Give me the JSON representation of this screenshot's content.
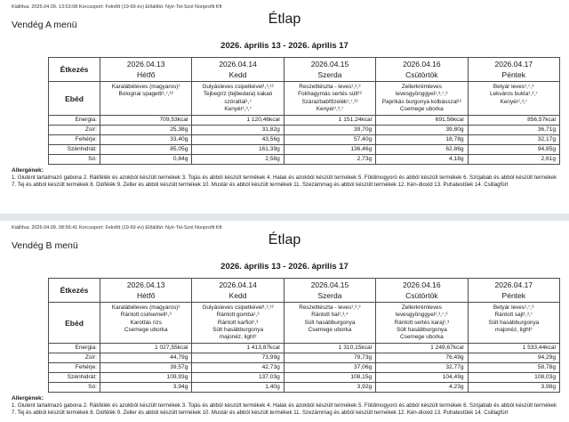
{
  "documents": [
    {
      "issued_line": "Kiállítva: 2026.04.09. 13:53:08 Korcsoport: Felnőtt (19-69 év) Előállító: Nyír-Tel-Szol Nonprofit Kft",
      "menu_name": "Vendég A menü",
      "title": "Étlap",
      "date_range": "2026. április 13 - 2026. április 17",
      "table": {
        "meal_column_header": "Étkezés",
        "meal_row_label": "Ebéd",
        "days": [
          {
            "date": "2026.04.13",
            "day": "Hétfő",
            "lines": [
              "Karalábéleves (magyaros)¹",
              "Bolognai spagetti¹,⁷,¹²"
            ]
          },
          {
            "date": "2026.04.14",
            "day": "Kedd",
            "lines": [
              "Gulyásleves csipetkével¹,³,¹²",
              "Tejbegríz (tejbedara) kakaó",
              "szórattal¹,⁷",
              "Kenyér¹,³,⁷"
            ]
          },
          {
            "date": "2026.04.15",
            "day": "Szerda",
            "lines": [
              "Reszelttészta - leves¹,³,⁹",
              "Fokhagymás sertés sült¹²",
              "Szárazbabfőzelék¹,⁷,¹²",
              "Kenyér¹,³,⁷"
            ]
          },
          {
            "date": "2026.04.16",
            "day": "Csütörtök",
            "lines": [
              "Zellerkrémleves",
              "levesgyönggyel¹,³,⁷,⁹",
              "Paprikás burgonya kolbásszal¹²",
              "Csemege uborka"
            ]
          },
          {
            "date": "2026.04.17",
            "day": "Péntek",
            "lines": [
              "Betyár leves¹,⁷,⁹",
              "Lekváros bukta¹,³,⁷",
              "Kenyér¹,³,⁷"
            ]
          }
        ],
        "nutrition": [
          {
            "label": "Energia:",
            "values": [
              "709,53kcal",
              "1 120,46kcal",
              "1 151,24kcal",
              "691,56kcal",
              "856,57kcal"
            ]
          },
          {
            "label": "Zsír:",
            "values": [
              "25,38g",
              "31,82g",
              "39,70g",
              "39,80g",
              "36,71g"
            ]
          },
          {
            "label": "Fehérje:",
            "values": [
              "33,40g",
              "43,56g",
              "57,40g",
              "18,78g",
              "32,17g"
            ]
          },
          {
            "label": "Szénhidrát:",
            "values": [
              "85,05g",
              "161,39g",
              "136,46g",
              "62,86g",
              "94,85g"
            ]
          },
          {
            "label": "Só:",
            "values": [
              "0,84g",
              "2,58g",
              "2,73g",
              "4,18g",
              "2,61g"
            ]
          }
        ]
      },
      "allergens_title": "Allergének:",
      "allergens_text": "1. Glutént tartalmazó gabona 2. Rákfélék és azokból készült termékek 3. Tojás és abból készült termékek 4. Halak és azokból készült termékek 5. Földimogyoró és abból készült termékek 6. Szójabab és abból készült termékek 7. Tej és abból készült termékek 8. Diófélék 9. Zeller és abból készült termékek 10. Mustár és abból készült termékek 11. Szezámmag és abból készült termékek 12. Kén-dioxid 13. Puhatestűek 14. Csillagfürt"
    },
    {
      "issued_line": "Kiállítva: 2026.04.09. 08:56:41 Korcsoport: Felnőtt (19-69 év) Előállító: Nyír-Tel-Szol Nonprofit Kft",
      "menu_name": "Vendég B menü",
      "title": "Étlap",
      "date_range": "2026. április 13 - 2026. április 17",
      "table": {
        "meal_column_header": "Étkezés",
        "meal_row_label": "Ebéd",
        "days": [
          {
            "date": "2026.04.13",
            "day": "Hétfő",
            "lines": [
              "Karalábéleves (magyaros)¹",
              "Rántott csirkemell¹,³",
              "Karottás rizs",
              "Csemege uborka"
            ]
          },
          {
            "date": "2026.04.14",
            "day": "Kedd",
            "lines": [
              "Gulyásleves csipetkével¹,³,¹²",
              "Rántott gomba¹,³",
              "Rántott karfiol¹,³",
              "Sült hasábburgonya",
              "majonéz, light³"
            ]
          },
          {
            "date": "2026.04.15",
            "day": "Szerda",
            "lines": [
              "Reszelttészta - leves¹,³,⁹",
              "Rántott hal¹,³,⁴",
              "Sült hasábburgonya",
              "Csemege uborka"
            ]
          },
          {
            "date": "2026.04.16",
            "day": "Csütörtök",
            "lines": [
              "Zellerkrémleves",
              "levesgyönggyel¹,³,⁷,⁹",
              "Rántott sertés karaj¹,³",
              "Sült hasábburgonya",
              "Csemege uborka"
            ]
          },
          {
            "date": "2026.04.17",
            "day": "Péntek",
            "lines": [
              "Betyár leves¹,⁷,⁹",
              "Rántott sajt¹,³,⁷",
              "Sült hasábburgonya",
              "majonéz, light³"
            ]
          }
        ],
        "nutrition": [
          {
            "label": "Energia:",
            "values": [
              "1 027,55kcal",
              "1 413,87kcal",
              "1 310,15kcal",
              "1 249,67kcal",
              "1 533,44kcal"
            ]
          },
          {
            "label": "Zsír:",
            "values": [
              "44,79g",
              "73,99g",
              "79,73g",
              "76,49g",
              "94,29g"
            ]
          },
          {
            "label": "Fehérje:",
            "values": [
              "39,57g",
              "42,73g",
              "37,06g",
              "32,77g",
              "58,78g"
            ]
          },
          {
            "label": "Szénhidrát:",
            "values": [
              "109,93g",
              "137,03g",
              "108,15g",
              "104,49g",
              "108,03g"
            ]
          },
          {
            "label": "Só:",
            "values": [
              "3,94g",
              "1,40g",
              "3,92g",
              "4,23g",
              "3,98g"
            ]
          }
        ]
      },
      "allergens_title": "Allergének:",
      "allergens_text": "1. Glutént tartalmazó gabona 2. Rákfélék és azokból készült termékek 3. Tojás és abból készült termékek 4. Halak és azokból készült termékek 5. Földimogyoró és abból készült termékek 6. Szójabab és abból készült termékek 7. Tej és abból készült termékek 8. Diófélék 9. Zeller és abból készült termékek 10. Mustár és abból készült termékek 11. Szezámmag és abból készült termékek 12. Kén-dioxid 13. Puhatestűek 14. Csillagfürt"
    }
  ]
}
